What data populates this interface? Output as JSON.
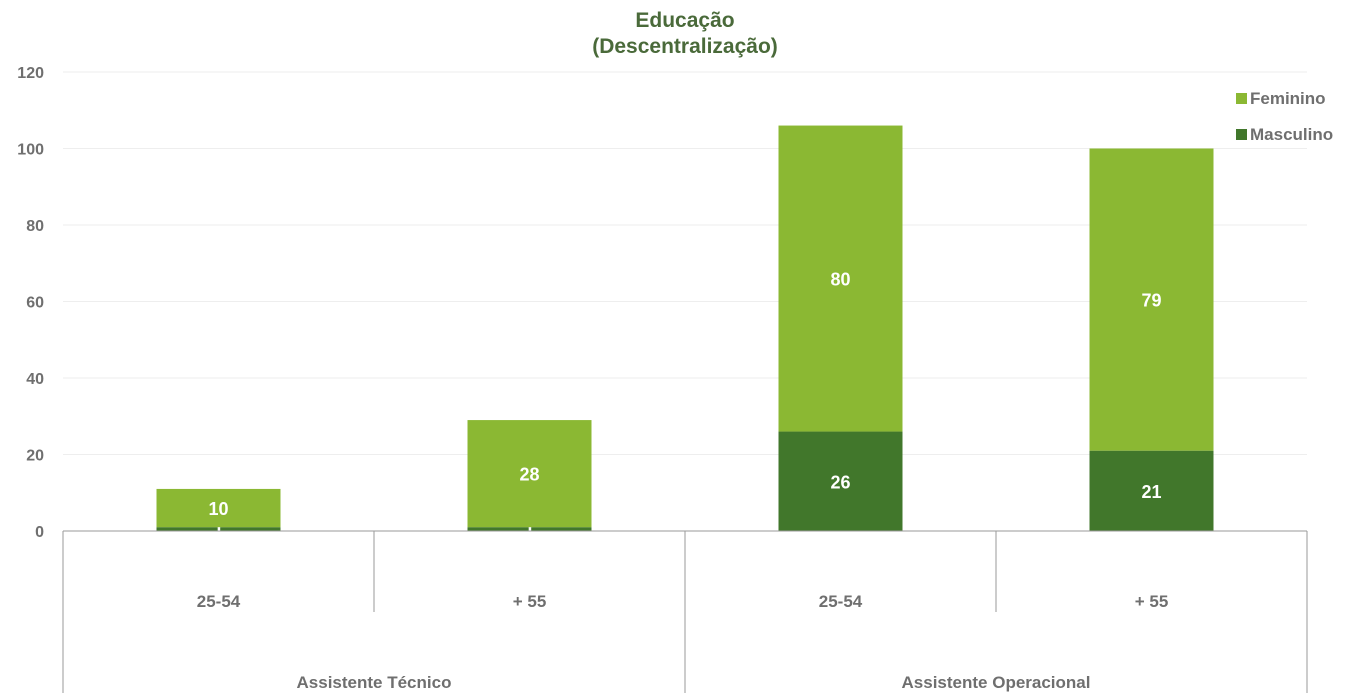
{
  "chart_data": {
    "type": "bar",
    "stacked": true,
    "title": "Educação",
    "subtitle": "(Descentralização)",
    "ylim": [
      0,
      120
    ],
    "yticks": [
      0,
      20,
      40,
      60,
      80,
      100,
      120
    ],
    "grid": true,
    "legend_position": "top-right",
    "categories": [
      "25-54",
      "+ 55",
      "25-54",
      "+ 55"
    ],
    "groups": [
      {
        "label": "Assistente Técnico",
        "categories": [
          "25-54",
          "+ 55"
        ]
      },
      {
        "label": "Assistente Operacional",
        "categories": [
          "25-54",
          "+ 55"
        ]
      }
    ],
    "series": [
      {
        "name": "Masculino",
        "color": "#41772b",
        "values": [
          1,
          1,
          26,
          21
        ]
      },
      {
        "name": "Feminino",
        "color": "#8bb833",
        "values": [
          10,
          28,
          80,
          79
        ]
      }
    ]
  }
}
